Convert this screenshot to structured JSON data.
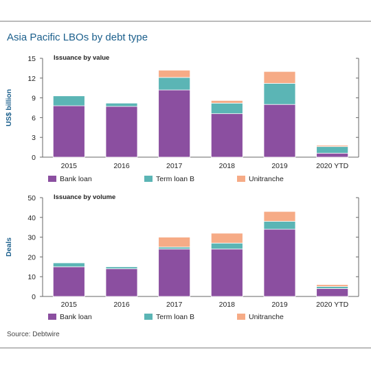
{
  "title": "Asia Pacific LBOs by debt type",
  "source": "Source: Debtwire",
  "colors": {
    "bank_loan": "#8b4fa0",
    "term_loan_b": "#5bb5b5",
    "unitranche": "#f6ab86",
    "title": "#1b5f8c",
    "axis_label": "#1b5f8c",
    "rule": "#666666"
  },
  "chart_data": [
    {
      "type": "bar",
      "stacked": true,
      "subtitle": "Issuance by value",
      "ylabel": "US$ billion",
      "xlabel": "",
      "ylim": [
        0,
        15
      ],
      "yticks": [
        0,
        3,
        6,
        9,
        12,
        15
      ],
      "grid": false,
      "legend_position": "bottom",
      "categories": [
        "2015",
        "2016",
        "2017",
        "2018",
        "2019",
        "2020 YTD"
      ],
      "series": [
        {
          "name": "Bank loan",
          "values": [
            7.8,
            7.7,
            10.2,
            6.6,
            8.0,
            0.6
          ]
        },
        {
          "name": "Term loan B",
          "values": [
            1.5,
            0.5,
            1.9,
            1.6,
            3.2,
            1.0
          ]
        },
        {
          "name": "Unitranche",
          "values": [
            0.0,
            0.0,
            1.1,
            0.4,
            1.8,
            0.2
          ]
        }
      ]
    },
    {
      "type": "bar",
      "stacked": true,
      "subtitle": "Issuance by volume",
      "ylabel": "Deals",
      "xlabel": "",
      "ylim": [
        0,
        50
      ],
      "yticks": [
        0,
        10,
        20,
        30,
        40,
        50
      ],
      "grid": false,
      "legend_position": "bottom",
      "categories": [
        "2015",
        "2016",
        "2017",
        "2018",
        "2019",
        "2020 YTD"
      ],
      "series": [
        {
          "name": "Bank loan",
          "values": [
            15,
            14,
            24,
            24,
            34,
            4
          ]
        },
        {
          "name": "Term loan B",
          "values": [
            2,
            1,
            1,
            3,
            4,
            1
          ]
        },
        {
          "name": "Unitranche",
          "values": [
            0,
            0,
            5,
            5,
            5,
            1
          ]
        }
      ]
    }
  ]
}
